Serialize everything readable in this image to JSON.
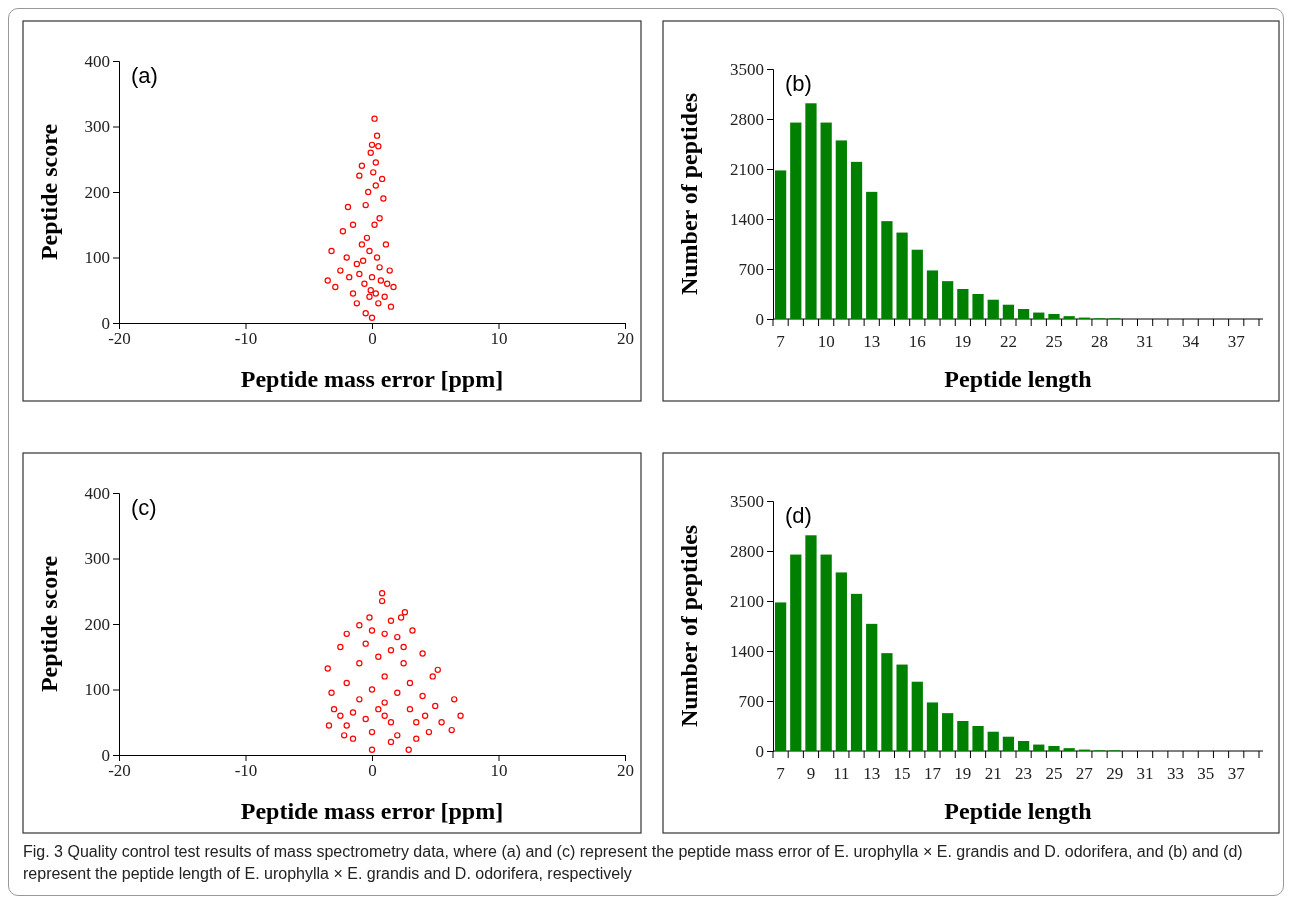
{
  "chart_data": [
    {
      "type": "scatter",
      "title": "(a)",
      "xlabel": "Peptide mass error [ppm]",
      "ylabel": "Peptide score",
      "color": "#ff0000",
      "marker": "circle",
      "xlim": [
        -20,
        20
      ],
      "xticks": [
        -20,
        -10,
        0,
        10,
        20
      ],
      "ylim": [
        0,
        400
      ],
      "yticks": [
        0,
        100,
        200,
        300,
        400
      ],
      "x": [
        0.2,
        0.4,
        0,
        0.5,
        -0.1,
        0.3,
        -0.8,
        -1.0,
        0.8,
        -1.9,
        -2.3,
        -3.2,
        -3.5,
        -2.9,
        1.7,
        1.4,
        1.5,
        0,
        -0.5,
        -1.2,
        0.9,
        0.6,
        1.1,
        -1.5,
        -2.0,
        -2.5,
        -1.5,
        0.5,
        1.0,
        -0.3,
        0.1,
        -0.5,
        0.2,
        -0.8,
        0.4,
        -1.2,
        0,
        -0.6,
        0.7,
        -0.2,
        -1.8,
        1.2,
        -0.4,
        0.3,
        -0.2,
        0.6,
        -1,
        -0.1,
        0.3,
        -0.7
      ],
      "values": [
        312,
        286,
        272,
        270,
        260,
        245,
        240,
        225,
        220,
        177,
        140,
        110,
        65,
        55,
        55,
        80,
        25,
        8,
        15,
        30,
        190,
        160,
        120,
        150,
        100,
        80,
        45,
        30,
        40,
        200,
        230,
        180,
        150,
        120,
        100,
        90,
        70,
        60,
        65,
        40,
        70,
        60,
        130,
        210,
        110,
        85,
        75,
        50,
        45,
        95
      ]
    },
    {
      "type": "bar",
      "title": "(b)",
      "xlabel": "Peptide length",
      "ylabel": "Number of peptides",
      "color": "#008000",
      "ylim": [
        0,
        3500
      ],
      "yticks": [
        0,
        700,
        1400,
        2100,
        2800,
        3500
      ],
      "categories": [
        "7",
        null,
        null,
        "10",
        null,
        null,
        "13",
        null,
        null,
        "16",
        null,
        null,
        "19",
        null,
        null,
        "22",
        null,
        null,
        "25",
        null,
        null,
        "28",
        null,
        null,
        "31",
        null,
        null,
        "34",
        null,
        null,
        "37",
        null
      ],
      "values": [
        2080,
        2750,
        3020,
        2750,
        2500,
        2200,
        1780,
        1370,
        1210,
        970,
        680,
        530,
        420,
        350,
        270,
        200,
        140,
        90,
        70,
        40,
        20,
        10,
        10,
        0,
        0,
        0,
        0,
        0,
        0,
        0,
        0,
        0
      ]
    },
    {
      "type": "scatter",
      "title": "(c)",
      "xlabel": "Peptide mass error [ppm]",
      "ylabel": "Peptide score",
      "color": "#ff0000",
      "marker": "circle",
      "xlim": [
        -20,
        20
      ],
      "xticks": [
        -20,
        -10,
        0,
        10,
        20
      ],
      "ylim": [
        0,
        400
      ],
      "yticks": [
        0,
        100,
        200,
        300,
        400
      ],
      "x": [
        0.8,
        0.8,
        2.6,
        2.3,
        -0.2,
        1.5,
        -1,
        3.2,
        -2,
        0,
        1,
        2,
        -2.5,
        4,
        -3.5,
        5.2,
        4.8,
        -3.2,
        -3,
        -3.4,
        6.5,
        7,
        6.3,
        5.5,
        4.5,
        -1.5,
        0,
        2.9,
        1.5,
        -2.2,
        3.5,
        0.5,
        2.5,
        -1,
        1,
        3,
        -2,
        0,
        2,
        4,
        -1,
        1,
        3,
        5,
        -2.5,
        -0.5,
        1.5,
        3.5,
        0,
        2,
        -1.5,
        2.5,
        1.5,
        -0.5,
        1,
        4.2,
        -2,
        0.5
      ],
      "values": [
        247,
        235,
        218,
        210,
        210,
        205,
        198,
        190,
        185,
        190,
        185,
        180,
        165,
        155,
        132,
        130,
        120,
        95,
        70,
        45,
        85,
        60,
        38,
        50,
        35,
        25,
        8,
        8,
        20,
        30,
        25,
        150,
        140,
        140,
        120,
        110,
        110,
        100,
        95,
        90,
        85,
        80,
        70,
        75,
        60,
        55,
        50,
        50,
        35,
        30,
        65,
        165,
        160,
        170,
        60,
        60,
        45,
        70
      ]
    },
    {
      "type": "bar",
      "title": "(d)",
      "xlabel": "Peptide length",
      "ylabel": "Number of peptides",
      "color": "#008000",
      "ylim": [
        0,
        3500
      ],
      "yticks": [
        0,
        700,
        1400,
        2100,
        2800,
        3500
      ],
      "categories": [
        "7",
        null,
        "9",
        null,
        "11",
        null,
        "13",
        null,
        "15",
        null,
        "17",
        null,
        "19",
        null,
        "21",
        null,
        "23",
        null,
        "25",
        null,
        "27",
        null,
        "29",
        null,
        "31",
        null,
        "33",
        null,
        "35",
        null,
        "37",
        null
      ],
      "values": [
        2080,
        2750,
        3020,
        2750,
        2500,
        2200,
        1780,
        1370,
        1210,
        970,
        680,
        530,
        420,
        350,
        270,
        200,
        140,
        90,
        70,
        40,
        20,
        10,
        10,
        0,
        0,
        0,
        0,
        0,
        0,
        0,
        0,
        0
      ],
      "annotations": [
        "Fig. 3 Quality control test results of mass spectrometry data, where (a) and (c) represent the peptide mass error of E. urophylla × E. grandis and D. odorifera, and (b) and (d) represent the peptide length of E. urophylla × E. grandis and D. odorifera, respectively"
      ]
    }
  ]
}
